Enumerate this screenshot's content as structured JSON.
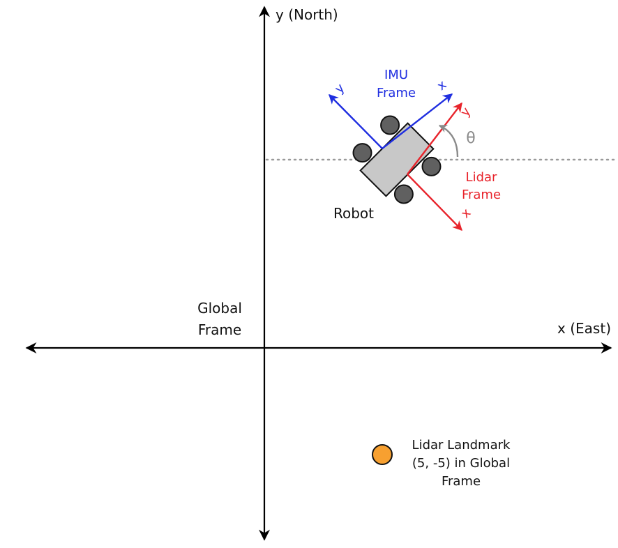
{
  "global_frame": {
    "x_axis_label": "x (East)",
    "y_axis_label": "y (North)",
    "name_line1": "Global",
    "name_line2": "Frame"
  },
  "robot": {
    "label": "Robot"
  },
  "imu_frame": {
    "name_line1": "IMU",
    "name_line2": "Frame",
    "x_label": "x",
    "y_label": "y"
  },
  "lidar_frame": {
    "name_line1": "Lidar",
    "name_line2": "Frame",
    "x_label": "x",
    "y_label": "y"
  },
  "heading": {
    "angle_label": "θ"
  },
  "landmark": {
    "line1": "Lidar Landmark",
    "line2": "(5, -5) in Global",
    "line3": "Frame"
  },
  "colors": {
    "axis": "#000000",
    "imu": "#1f2ee0",
    "lidar": "#e8232b",
    "robot_body": "#c8c8c8",
    "wheels": "#606060",
    "landmark": "#f7a030",
    "guide": "#9a9a9a"
  }
}
